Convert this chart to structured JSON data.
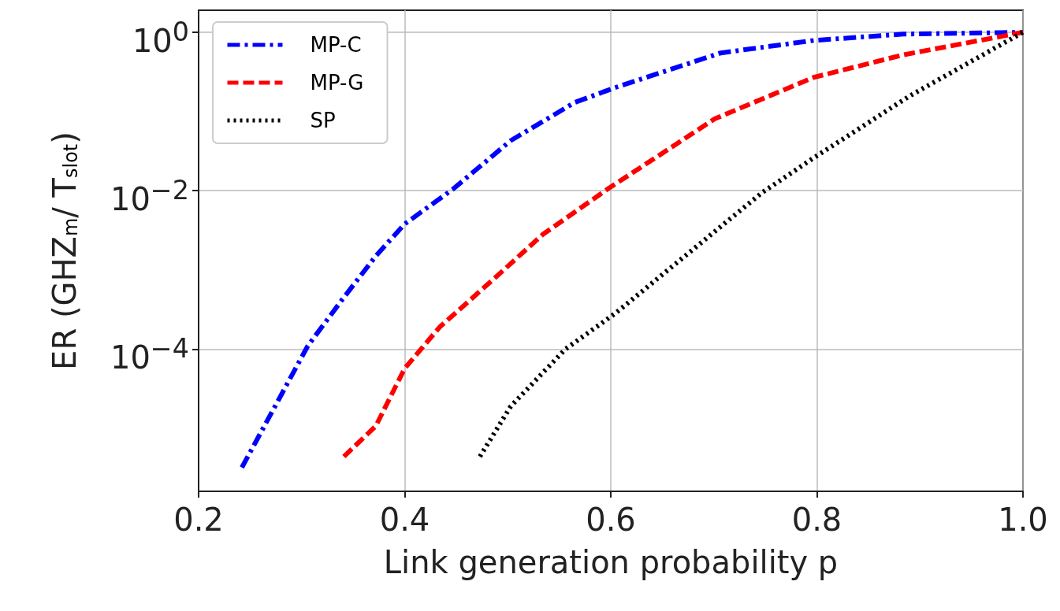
{
  "chart_data": {
    "type": "line",
    "xlabel": "Link generation probability p",
    "ylabel": "ER (GHZ$_{m}$/ T$_{slot}$)",
    "log": "y",
    "grid": true,
    "legend": "top left",
    "marker": "none",
    "xlim": [
      0.2,
      1.0
    ],
    "xticks": [
      0.2,
      0.4,
      0.6,
      0.8,
      {
        "value": 1.0,
        "label": "1.0"
      }
    ],
    "ylim": [
      1.6e-06,
      1.9
    ],
    "yticks": [
      {
        "value": 0.0001,
        "label": "10$^{−4}$"
      },
      {
        "value": 0.01,
        "label": "10$^{−2}$"
      },
      {
        "value": 1,
        "label": "10$^{0}$"
      }
    ],
    "series": [
      {
        "name": "MP-C",
        "color": "#0000ff",
        "line_style": "dashdot",
        "x": [
          0.242,
          0.306,
          0.341,
          0.372,
          0.4,
          0.447,
          0.503,
          0.565,
          0.604,
          0.707,
          0.797,
          0.884,
          1.0
        ],
        "values": [
          3.2e-06,
          0.00011,
          0.00045,
          0.0015,
          0.0038,
          0.0105,
          0.043,
          0.13,
          0.2,
          0.55,
          0.79,
          0.95,
          1.0
        ]
      },
      {
        "name": "MP-G",
        "color": "#ff0000",
        "line_style": "dashed",
        "x": [
          0.341,
          0.372,
          0.4,
          0.434,
          0.487,
          0.534,
          0.597,
          0.701,
          0.797,
          0.884,
          1.0
        ],
        "values": [
          4.4e-06,
          1.07e-05,
          5.7e-05,
          0.00019,
          0.00078,
          0.0028,
          0.0105,
          0.081,
          0.27,
          0.52,
          1.0
        ]
      },
      {
        "name": "SP",
        "color": "#000000",
        "line_style": "dotted",
        "x": [
          0.473,
          0.503,
          0.556,
          0.604,
          0.747,
          0.797,
          0.891,
          1.0
        ],
        "values": [
          4.4e-06,
          1.9e-05,
          0.0001,
          0.00028,
          0.0095,
          0.026,
          0.16,
          1.0
        ]
      }
    ]
  }
}
